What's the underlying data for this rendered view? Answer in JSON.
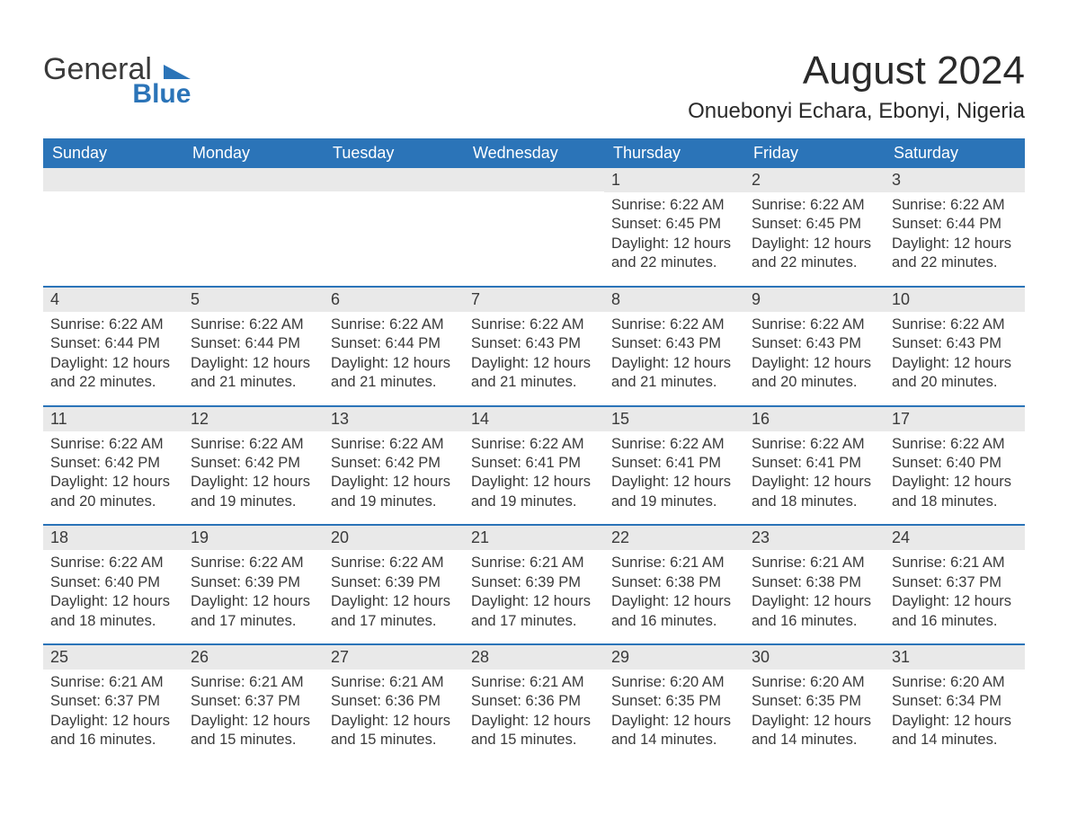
{
  "logo": {
    "line1": "General",
    "line2": "Blue"
  },
  "title": "August 2024",
  "subtitle": "Onuebonyi Echara, Ebonyi, Nigeria",
  "colors": {
    "brand_blue": "#2b74b8",
    "header_bg": "#2b74b8",
    "header_text": "#ffffff",
    "daynum_bg": "#e9e9e9",
    "text": "#3a3a3a",
    "page_bg": "#ffffff"
  },
  "typography": {
    "title_fontsize": 44,
    "subtitle_fontsize": 24,
    "dow_fontsize": 18,
    "daynum_fontsize": 18,
    "body_fontsize": 16.5,
    "font_family": "Arial"
  },
  "daysOfWeek": [
    "Sunday",
    "Monday",
    "Tuesday",
    "Wednesday",
    "Thursday",
    "Friday",
    "Saturday"
  ],
  "leadingBlanks": 4,
  "firstWeekDays": 3,
  "days": [
    {
      "n": 1,
      "sunrise": "6:22 AM",
      "sunset": "6:45 PM",
      "daylight": "12 hours and 22 minutes."
    },
    {
      "n": 2,
      "sunrise": "6:22 AM",
      "sunset": "6:45 PM",
      "daylight": "12 hours and 22 minutes."
    },
    {
      "n": 3,
      "sunrise": "6:22 AM",
      "sunset": "6:44 PM",
      "daylight": "12 hours and 22 minutes."
    },
    {
      "n": 4,
      "sunrise": "6:22 AM",
      "sunset": "6:44 PM",
      "daylight": "12 hours and 22 minutes."
    },
    {
      "n": 5,
      "sunrise": "6:22 AM",
      "sunset": "6:44 PM",
      "daylight": "12 hours and 21 minutes."
    },
    {
      "n": 6,
      "sunrise": "6:22 AM",
      "sunset": "6:44 PM",
      "daylight": "12 hours and 21 minutes."
    },
    {
      "n": 7,
      "sunrise": "6:22 AM",
      "sunset": "6:43 PM",
      "daylight": "12 hours and 21 minutes."
    },
    {
      "n": 8,
      "sunrise": "6:22 AM",
      "sunset": "6:43 PM",
      "daylight": "12 hours and 21 minutes."
    },
    {
      "n": 9,
      "sunrise": "6:22 AM",
      "sunset": "6:43 PM",
      "daylight": "12 hours and 20 minutes."
    },
    {
      "n": 10,
      "sunrise": "6:22 AM",
      "sunset": "6:43 PM",
      "daylight": "12 hours and 20 minutes."
    },
    {
      "n": 11,
      "sunrise": "6:22 AM",
      "sunset": "6:42 PM",
      "daylight": "12 hours and 20 minutes."
    },
    {
      "n": 12,
      "sunrise": "6:22 AM",
      "sunset": "6:42 PM",
      "daylight": "12 hours and 19 minutes."
    },
    {
      "n": 13,
      "sunrise": "6:22 AM",
      "sunset": "6:42 PM",
      "daylight": "12 hours and 19 minutes."
    },
    {
      "n": 14,
      "sunrise": "6:22 AM",
      "sunset": "6:41 PM",
      "daylight": "12 hours and 19 minutes."
    },
    {
      "n": 15,
      "sunrise": "6:22 AM",
      "sunset": "6:41 PM",
      "daylight": "12 hours and 19 minutes."
    },
    {
      "n": 16,
      "sunrise": "6:22 AM",
      "sunset": "6:41 PM",
      "daylight": "12 hours and 18 minutes."
    },
    {
      "n": 17,
      "sunrise": "6:22 AM",
      "sunset": "6:40 PM",
      "daylight": "12 hours and 18 minutes."
    },
    {
      "n": 18,
      "sunrise": "6:22 AM",
      "sunset": "6:40 PM",
      "daylight": "12 hours and 18 minutes."
    },
    {
      "n": 19,
      "sunrise": "6:22 AM",
      "sunset": "6:39 PM",
      "daylight": "12 hours and 17 minutes."
    },
    {
      "n": 20,
      "sunrise": "6:22 AM",
      "sunset": "6:39 PM",
      "daylight": "12 hours and 17 minutes."
    },
    {
      "n": 21,
      "sunrise": "6:21 AM",
      "sunset": "6:39 PM",
      "daylight": "12 hours and 17 minutes."
    },
    {
      "n": 22,
      "sunrise": "6:21 AM",
      "sunset": "6:38 PM",
      "daylight": "12 hours and 16 minutes."
    },
    {
      "n": 23,
      "sunrise": "6:21 AM",
      "sunset": "6:38 PM",
      "daylight": "12 hours and 16 minutes."
    },
    {
      "n": 24,
      "sunrise": "6:21 AM",
      "sunset": "6:37 PM",
      "daylight": "12 hours and 16 minutes."
    },
    {
      "n": 25,
      "sunrise": "6:21 AM",
      "sunset": "6:37 PM",
      "daylight": "12 hours and 16 minutes."
    },
    {
      "n": 26,
      "sunrise": "6:21 AM",
      "sunset": "6:37 PM",
      "daylight": "12 hours and 15 minutes."
    },
    {
      "n": 27,
      "sunrise": "6:21 AM",
      "sunset": "6:36 PM",
      "daylight": "12 hours and 15 minutes."
    },
    {
      "n": 28,
      "sunrise": "6:21 AM",
      "sunset": "6:36 PM",
      "daylight": "12 hours and 15 minutes."
    },
    {
      "n": 29,
      "sunrise": "6:20 AM",
      "sunset": "6:35 PM",
      "daylight": "12 hours and 14 minutes."
    },
    {
      "n": 30,
      "sunrise": "6:20 AM",
      "sunset": "6:35 PM",
      "daylight": "12 hours and 14 minutes."
    },
    {
      "n": 31,
      "sunrise": "6:20 AM",
      "sunset": "6:34 PM",
      "daylight": "12 hours and 14 minutes."
    }
  ],
  "labels": {
    "sunrise": "Sunrise:",
    "sunset": "Sunset:",
    "daylight": "Daylight:"
  }
}
